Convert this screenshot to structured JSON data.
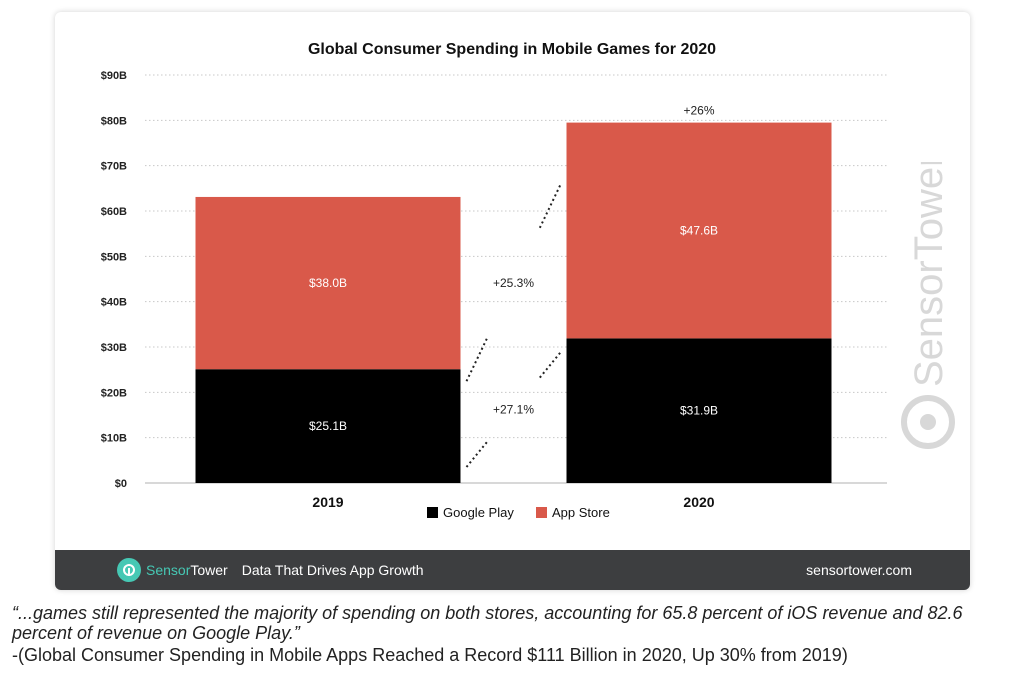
{
  "chart_data": {
    "type": "bar",
    "stacked": true,
    "title": "Global Consumer Spending in Mobile Games for 2020",
    "categories": [
      "2019",
      "2020"
    ],
    "series": [
      {
        "name": "Google Play",
        "values": [
          25.1,
          31.9
        ],
        "labels": [
          "$25.1B",
          "$31.9B"
        ],
        "color": "#000000"
      },
      {
        "name": "App Store",
        "values": [
          38.0,
          47.6
        ],
        "labels": [
          "$38.0B",
          "$47.6B"
        ],
        "color": "#d9594a"
      }
    ],
    "ylim": [
      0,
      90
    ],
    "yticks": [
      0,
      10,
      20,
      30,
      40,
      50,
      60,
      70,
      80,
      90
    ],
    "ytick_labels": [
      "$0",
      "$10B",
      "$20B",
      "$30B",
      "$40B",
      "$50B",
      "$60B",
      "$70B",
      "$80B",
      "$90B"
    ],
    "total_growth_label": "+26%",
    "growth_annotations": {
      "app_store": "+25.3%",
      "google_play": "+27.1%"
    },
    "grid": true,
    "legend_position": "bottom"
  },
  "footer": {
    "brand_sensor": "Sensor",
    "brand_tower": "Tower",
    "tagline": "Data That Drives App Growth",
    "url": "sensortower.com"
  },
  "watermark": {
    "text": "SensorTower"
  },
  "quote": "“...games still represented the majority of spending on both stores, accounting for 65.8 percent of iOS revenue and 82.6 percent of revenue on Google Play.”",
  "source": "-(Global Consumer Spending in Mobile Apps Reached a Record $111 Billion in 2020, Up 30% from 2019)"
}
